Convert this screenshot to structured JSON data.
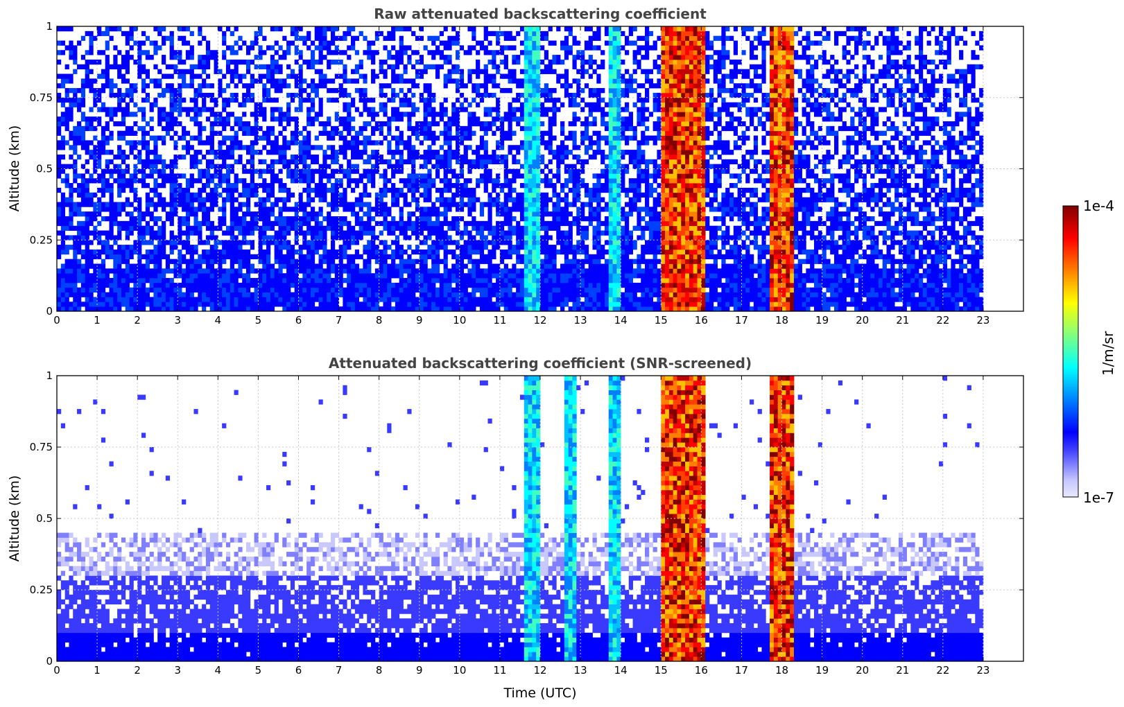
{
  "chart_data": [
    {
      "type": "heatmap",
      "title": "Raw attenuated backscattering coefficient",
      "xlabel": "",
      "ylabel": "Altitude (km)",
      "xlim": [
        0,
        24
      ],
      "ylim": [
        0,
        1
      ],
      "x_ticks": [
        "0",
        "1",
        "2",
        "3",
        "4",
        "5",
        "6",
        "7",
        "8",
        "9",
        "10",
        "11",
        "12",
        "13",
        "14",
        "15",
        "16",
        "17",
        "18",
        "19",
        "20",
        "21",
        "22",
        "23"
      ],
      "y_ticks": [
        "0",
        "0.25",
        "0.5",
        "0.75",
        "1"
      ],
      "data_x_range": [
        0,
        23
      ],
      "grid": true,
      "features": [
        {
          "name": "noise",
          "x_range": [
            0,
            23
          ],
          "y_range": [
            0,
            1
          ],
          "level": "low"
        },
        {
          "name": "aerosol_layer",
          "x_range": [
            0,
            23
          ],
          "y_range": [
            0,
            0.15
          ],
          "level": "low"
        },
        {
          "name": "plume",
          "x_range": [
            11.6,
            12.0
          ],
          "y_range": [
            0,
            1
          ],
          "level": "mid"
        },
        {
          "name": "plume",
          "x_range": [
            13.7,
            14.0
          ],
          "y_range": [
            0,
            1
          ],
          "level": "mid"
        },
        {
          "name": "cloud_rain",
          "x_range": [
            15.0,
            16.1
          ],
          "y_range": [
            0,
            1
          ],
          "level": "high"
        },
        {
          "name": "cloud_rain",
          "x_range": [
            17.7,
            18.3
          ],
          "y_range": [
            0,
            1
          ],
          "level": "high"
        }
      ]
    },
    {
      "type": "heatmap",
      "title": "Attenuated backscattering coefficient (SNR-screened)",
      "xlabel": "Time (UTC)",
      "ylabel": "Altitude (km)",
      "xlim": [
        0,
        24
      ],
      "ylim": [
        0,
        1
      ],
      "x_ticks": [
        "0",
        "1",
        "2",
        "3",
        "4",
        "5",
        "6",
        "7",
        "8",
        "9",
        "10",
        "11",
        "12",
        "13",
        "14",
        "15",
        "16",
        "17",
        "18",
        "19",
        "20",
        "21",
        "22",
        "23"
      ],
      "y_ticks": [
        "0",
        "0.25",
        "0.5",
        "0.75",
        "1"
      ],
      "data_x_range": [
        0,
        23
      ],
      "grid": true,
      "features": [
        {
          "name": "boundary_layer",
          "x_range": [
            0,
            23
          ],
          "y_range": [
            0,
            0.45
          ],
          "level": "low"
        },
        {
          "name": "plume",
          "x_range": [
            11.6,
            12.0
          ],
          "y_range": [
            0,
            1
          ],
          "level": "mid"
        },
        {
          "name": "plume",
          "x_range": [
            12.6,
            12.9
          ],
          "y_range": [
            0,
            1
          ],
          "level": "mid"
        },
        {
          "name": "plume",
          "x_range": [
            13.7,
            14.0
          ],
          "y_range": [
            0,
            1
          ],
          "level": "mid"
        },
        {
          "name": "cloud_rain",
          "x_range": [
            15.0,
            16.1
          ],
          "y_range": [
            0,
            1
          ],
          "level": "high"
        },
        {
          "name": "cloud_rain",
          "x_range": [
            17.7,
            18.3
          ],
          "y_range": [
            0,
            1
          ],
          "level": "high"
        }
      ]
    }
  ],
  "colorbar": {
    "label": "1/m/sr",
    "max_label": "1e-4",
    "min_label": "1e-7",
    "scale": "log",
    "colormap": [
      "#e8e8ff",
      "#c8c8ff",
      "#8080ff",
      "#3a3aff",
      "#0000ff",
      "#0040ff",
      "#0080ff",
      "#00c0ff",
      "#00ffff",
      "#40ffc0",
      "#80ff80",
      "#c0ff40",
      "#ffff00",
      "#ffc000",
      "#ff8000",
      "#ff4000",
      "#ff0000",
      "#c00000",
      "#800000"
    ]
  }
}
